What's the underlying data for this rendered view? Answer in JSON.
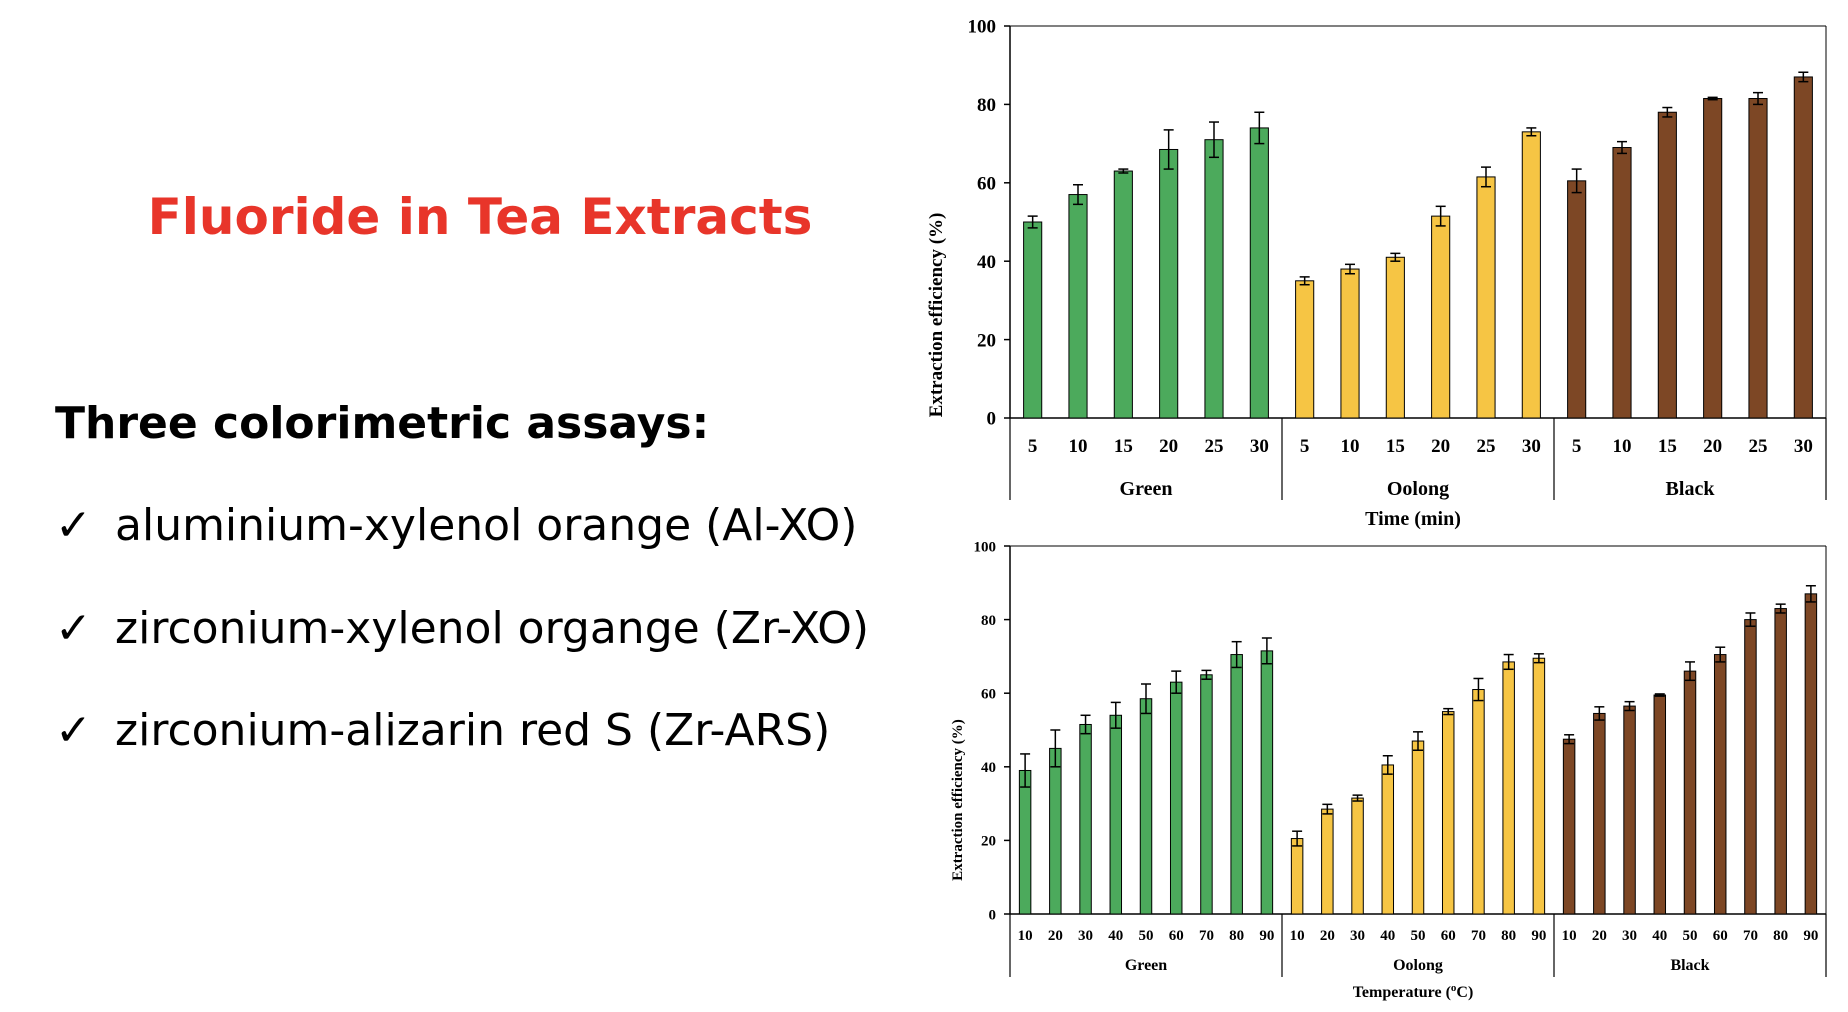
{
  "slide": {
    "title": "Fluoride in Tea Extracts",
    "subtitle": "Three colorimetric assays:",
    "check_glyph": "✓",
    "assays": [
      "aluminium-xylenol orange (Al-XO)",
      "zirconium-xylenol organge (Zr-XO)",
      "zirconium-alizarin red S (Zr-ARS)"
    ]
  },
  "chart_data": [
    {
      "type": "bar",
      "title": "",
      "ylabel": "Extraction efficiency (%)",
      "xlabel": "Time (min)",
      "ylim": [
        0,
        100
      ],
      "yticks": [
        0,
        20,
        40,
        60,
        80,
        100
      ],
      "groups": [
        {
          "name": "Green",
          "color": "#4caa5c",
          "categories": [
            "5",
            "10",
            "15",
            "20",
            "25",
            "30"
          ],
          "values": [
            50,
            57,
            63,
            68.5,
            71,
            74
          ],
          "errors": [
            1.5,
            2.5,
            0.5,
            5,
            4.5,
            4
          ]
        },
        {
          "name": "Oolong",
          "color": "#f6c544",
          "categories": [
            "5",
            "10",
            "15",
            "20",
            "25",
            "30"
          ],
          "values": [
            35,
            38,
            41,
            51.5,
            61.5,
            73
          ],
          "errors": [
            1,
            1.2,
            1,
            2.5,
            2.5,
            1
          ]
        },
        {
          "name": "Black",
          "color": "#7d4725",
          "categories": [
            "5",
            "10",
            "15",
            "20",
            "25",
            "30"
          ],
          "values": [
            60.5,
            69,
            78,
            81.5,
            81.5,
            87
          ],
          "errors": [
            3,
            1.5,
            1.2,
            0.3,
            1.5,
            1.2
          ]
        }
      ]
    },
    {
      "type": "bar",
      "title": "",
      "ylabel": "Extraction efficiency (%)",
      "xlabel": "Temperature (oC)",
      "xlabel_main": "Temperature (",
      "xlabel_sup": "o",
      "xlabel_end": "C)",
      "ylim": [
        0,
        100
      ],
      "yticks": [
        0,
        20,
        40,
        60,
        80,
        100
      ],
      "groups": [
        {
          "name": "Green",
          "color": "#4caa5c",
          "categories": [
            "10",
            "20",
            "30",
            "40",
            "50",
            "60",
            "70",
            "80",
            "90"
          ],
          "values": [
            39,
            45,
            51.5,
            54,
            58.5,
            63,
            65,
            70.5,
            71.5
          ],
          "errors": [
            4.5,
            5,
            2.5,
            3.5,
            4,
            3,
            1.2,
            3.5,
            3.5
          ]
        },
        {
          "name": "Oolong",
          "color": "#f6c544",
          "categories": [
            "10",
            "20",
            "30",
            "40",
            "50",
            "60",
            "70",
            "80",
            "90"
          ],
          "values": [
            20.5,
            28.5,
            31.5,
            40.5,
            47,
            55,
            61,
            68.5,
            69.5
          ],
          "errors": [
            2,
            1.3,
            0.8,
            2.5,
            2.5,
            0.8,
            3,
            2,
            1.2
          ]
        },
        {
          "name": "Black",
          "color": "#7d4725",
          "categories": [
            "10",
            "20",
            "30",
            "40",
            "50",
            "60",
            "70",
            "80",
            "90"
          ],
          "values": [
            47.5,
            54.5,
            56.5,
            59.5,
            66,
            70.5,
            80,
            83,
            87
          ],
          "errors": [
            1.2,
            1.8,
            1.2,
            0.3,
            2.5,
            2,
            1.8,
            1.2,
            2.2
          ]
        }
      ]
    }
  ]
}
